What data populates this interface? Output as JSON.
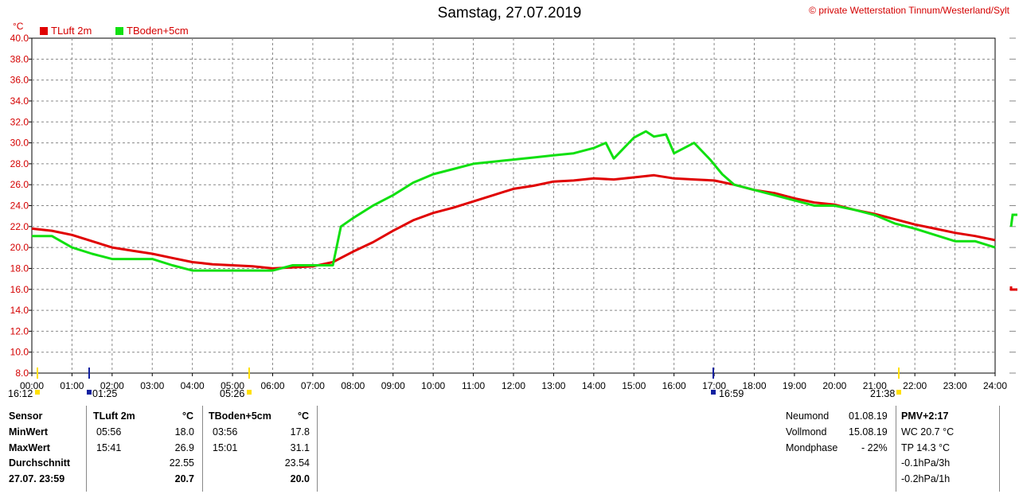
{
  "title": "Samstag, 27.07.2019",
  "credit": "© private Wetterstation Tinnum/Westerland/Sylt",
  "y_unit": "°C",
  "chart_data": {
    "type": "line",
    "x_unit": "hour of day",
    "xlim": [
      0,
      24
    ],
    "ylim": [
      8,
      40
    ],
    "grid": true,
    "legend_position": "top-left",
    "x_tick_labels": [
      "00:00",
      "01:00",
      "02:00",
      "03:00",
      "04:00",
      "05:00",
      "06:00",
      "07:00",
      "08:00",
      "09:00",
      "10:00",
      "11:00",
      "12:00",
      "13:00",
      "14:00",
      "15:00",
      "16:00",
      "17:00",
      "18:00",
      "19:00",
      "20:00",
      "21:00",
      "22:00",
      "23:00",
      "24:00"
    ],
    "y_tick_labels": [
      "8.0",
      "10.0",
      "12.0",
      "14.0",
      "16.0",
      "18.0",
      "20.0",
      "22.0",
      "24.0",
      "26.0",
      "28.0",
      "30.0",
      "32.0",
      "34.0",
      "36.0",
      "38.0",
      "40.0"
    ],
    "series": [
      {
        "name": "TLuft 2m",
        "color": "#e00000",
        "x": [
          0,
          0.5,
          1,
          1.5,
          2,
          2.5,
          3,
          3.5,
          4,
          4.5,
          5,
          5.5,
          6,
          6.5,
          7,
          7.5,
          8,
          8.5,
          9,
          9.5,
          10,
          10.5,
          11,
          11.5,
          12,
          12.5,
          13,
          13.5,
          14,
          14.5,
          15,
          15.5,
          16,
          16.5,
          17,
          17.5,
          18,
          18.5,
          19,
          19.5,
          20,
          20.5,
          21,
          21.5,
          22,
          22.5,
          23,
          23.5,
          24
        ],
        "y": [
          21.8,
          21.6,
          21.2,
          20.6,
          20.0,
          19.7,
          19.4,
          19.0,
          18.6,
          18.4,
          18.3,
          18.2,
          18.0,
          18.1,
          18.2,
          18.6,
          19.6,
          20.5,
          21.6,
          22.6,
          23.3,
          23.8,
          24.4,
          25.0,
          25.6,
          25.9,
          26.3,
          26.4,
          26.6,
          26.5,
          26.7,
          26.9,
          26.6,
          26.5,
          26.4,
          26.0,
          25.5,
          25.2,
          24.7,
          24.3,
          24.1,
          23.6,
          23.2,
          22.7,
          22.2,
          21.8,
          21.4,
          21.1,
          20.7
        ]
      },
      {
        "name": "TBoden+5cm",
        "color": "#10e010",
        "x": [
          0,
          0.5,
          1,
          1.5,
          2,
          2.5,
          3,
          3.5,
          4,
          4.5,
          5,
          5.5,
          6,
          6.5,
          7,
          7.5,
          7.7,
          8,
          8.5,
          9,
          9.5,
          10,
          10.5,
          11,
          11.5,
          12,
          12.5,
          13,
          13.5,
          14,
          14.3,
          14.5,
          15,
          15.3,
          15.5,
          15.8,
          16,
          16.5,
          16.9,
          17.2,
          17.5,
          18,
          18.5,
          19,
          19.5,
          20,
          20.5,
          21,
          21.5,
          22,
          22.5,
          23,
          23.5,
          24
        ],
        "y": [
          21.1,
          21.1,
          20.0,
          19.4,
          18.9,
          18.9,
          18.9,
          18.3,
          17.8,
          17.8,
          17.8,
          17.8,
          17.8,
          18.3,
          18.3,
          18.3,
          22.0,
          22.8,
          24.0,
          25.0,
          26.2,
          27.0,
          27.5,
          28.0,
          28.2,
          28.4,
          28.6,
          28.8,
          29.0,
          29.5,
          30.0,
          28.5,
          30.5,
          31.1,
          30.6,
          30.8,
          29.0,
          30.0,
          28.4,
          27.0,
          26.0,
          25.5,
          25.0,
          24.5,
          24.0,
          24.0,
          23.6,
          23.1,
          22.3,
          21.8,
          21.2,
          20.6,
          20.6,
          20.0
        ]
      }
    ]
  },
  "markers": {
    "left_start": "16:12",
    "items": [
      "01:25",
      "05:26",
      "16:59",
      "21:38"
    ]
  },
  "stats": {
    "header_sensor": "Sensor",
    "row_min": "MinWert",
    "row_max": "MaxWert",
    "row_avg": "Durchschnitt",
    "row_last": "27.07. 23:59",
    "col1": {
      "name": "TLuft 2m",
      "unit": "°C",
      "min_time": "05:56",
      "min": "18.0",
      "max_time": "15:41",
      "max": "26.9",
      "avg": "22.55",
      "last": "20.7"
    },
    "col2": {
      "name": "TBoden+5cm",
      "unit": "°C",
      "min_time": "03:56",
      "min": "17.8",
      "max_time": "15:01",
      "max": "31.1",
      "avg": "23.54",
      "last": "20.0"
    }
  },
  "moon": {
    "new_label": "Neumond",
    "new_date": "01.08.19",
    "full_label": "Vollmond",
    "full_date": "15.08.19",
    "phase_label": "Mondphase",
    "phase_value": "- 22%"
  },
  "extra": {
    "pmv": "PMV+2:17",
    "wc": "WC 20.7 °C",
    "tp": "TP 14.3 °C",
    "p3h": "-0.1hPa/3h",
    "p1h": "-0.2hPa/1h"
  }
}
